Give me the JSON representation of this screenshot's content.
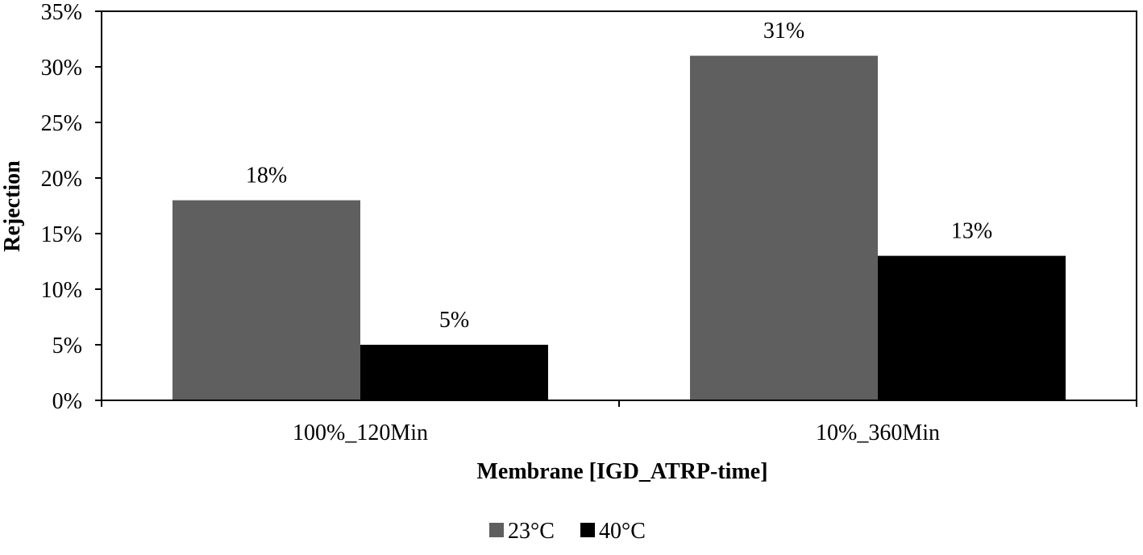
{
  "chart_data": {
    "type": "bar",
    "title": "",
    "xlabel": "Membrane [IGD_ATRP-time]",
    "ylabel": "Rejection",
    "categories": [
      "100%_120Min",
      "10%_360Min"
    ],
    "series": [
      {
        "name": "23°C",
        "values": [
          18,
          31
        ],
        "labels": [
          "18%",
          "31%"
        ],
        "color": "#5f5f5f"
      },
      {
        "name": "40°C",
        "values": [
          5,
          13
        ],
        "labels": [
          "5%",
          "13%"
        ],
        "color": "#000000"
      }
    ],
    "ylim": [
      0,
      35
    ],
    "yticks": [
      0,
      5,
      10,
      15,
      20,
      25,
      30,
      35
    ],
    "ytick_labels": [
      "0%",
      "5%",
      "10%",
      "15%",
      "20%",
      "25%",
      "30%",
      "35%"
    ],
    "grid": false,
    "legend_position": "bottom"
  }
}
